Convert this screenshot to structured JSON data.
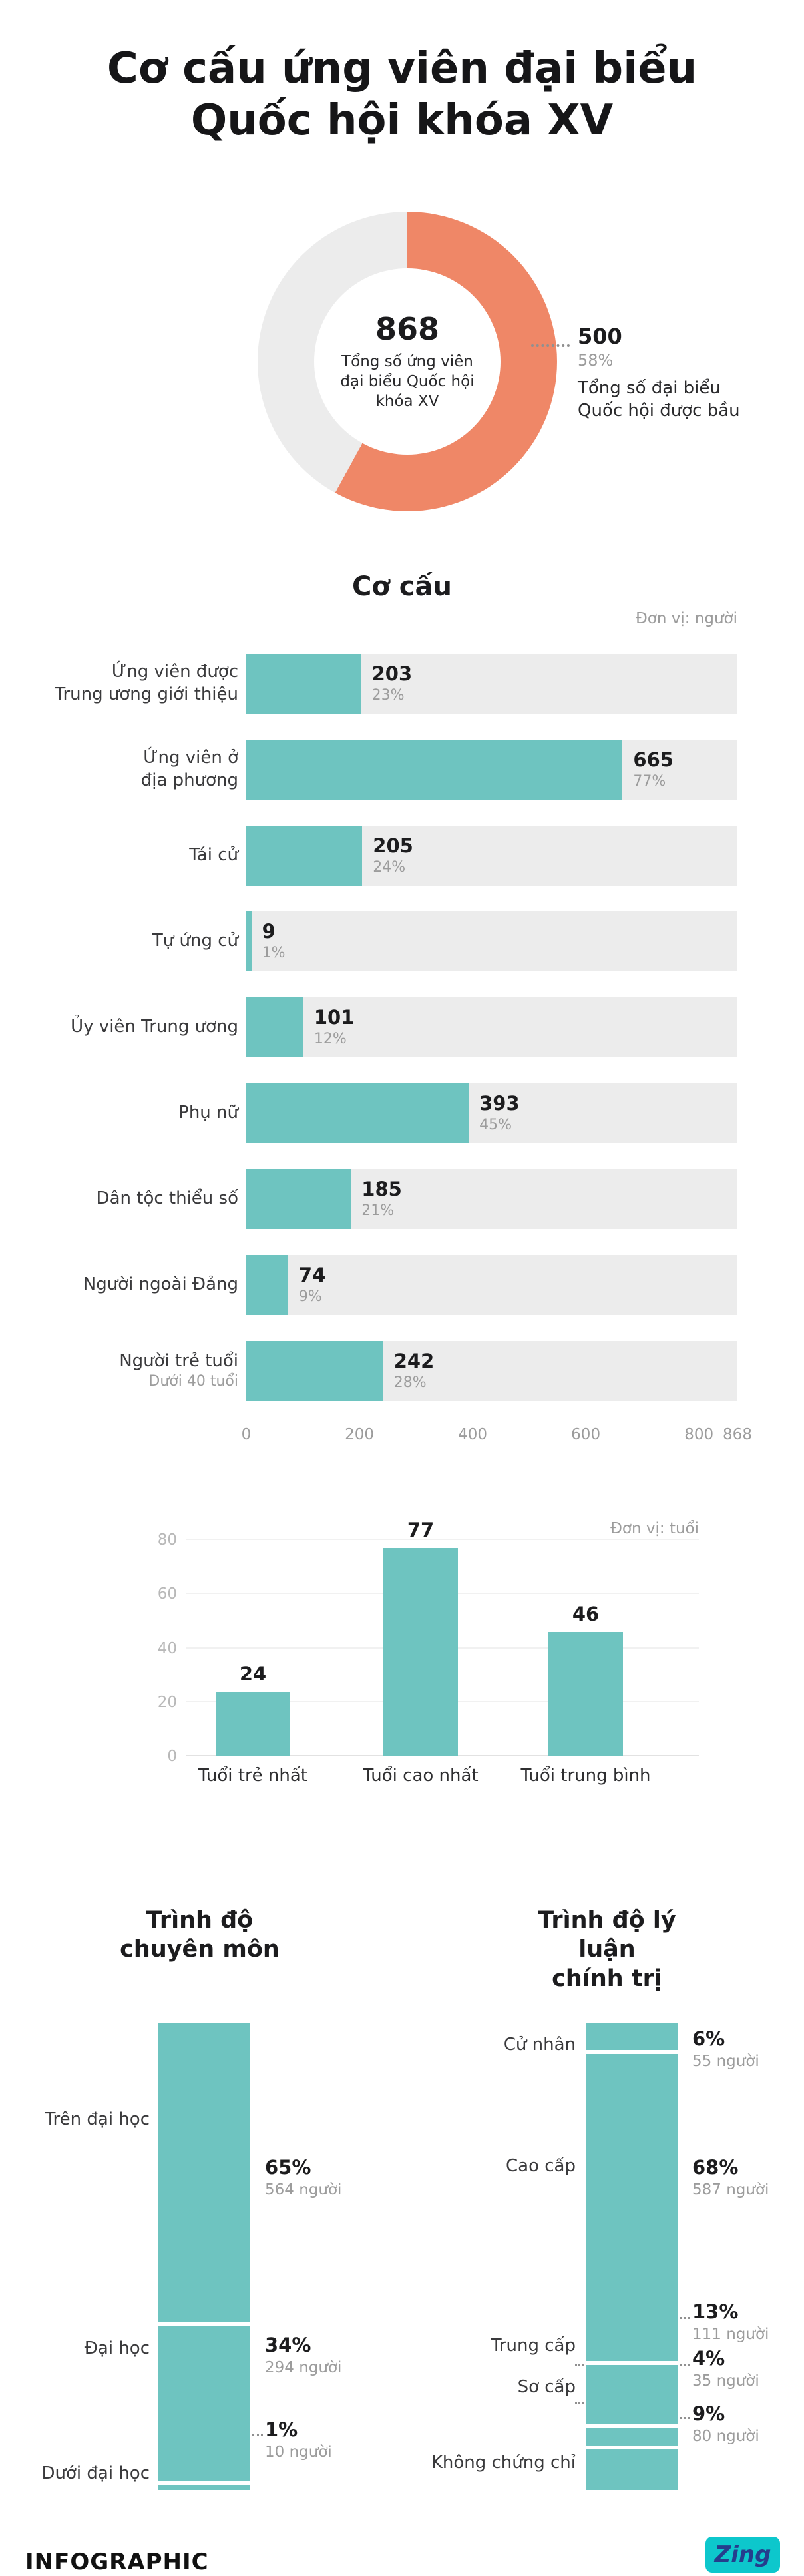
{
  "page_title": "Cơ cấu ứng viên đại biểu\nQuốc hội khóa XV",
  "colors": {
    "teal": "#6ec4c0",
    "orange": "#ef8767",
    "track_gray": "#ececec",
    "text_dark": "#1c1c1e",
    "text_gray": "#9c9c9c"
  },
  "chart_data": [
    {
      "type": "pie",
      "subtype": "donut",
      "center_value": "868",
      "center_label": "Tổng số ứng viên\nđại biểu Quốc hội\nkhóa XV",
      "slices": [
        {
          "label": "Tổng số đại biểu\nQuốc hội được bầu",
          "value": "500",
          "percent": 58,
          "percent_label": "58%",
          "color": "#ef8767"
        },
        {
          "percent": 42,
          "color": "#ececec"
        }
      ]
    },
    {
      "type": "bar",
      "orientation": "horizontal",
      "title": "Cơ cấu",
      "unit": "Đơn vị: người",
      "xlim": [
        0,
        868
      ],
      "x_ticks": [
        0,
        200,
        400,
        600,
        800,
        868
      ],
      "categories": [
        "Ứng viên được\nTrung ương giới thiệu",
        "Ứng viên ở\nđịa phương",
        "Tái cử",
        "Tự ứng cử",
        "Ủy viên Trung ương",
        "Phụ nữ",
        "Dân tộc thiểu số",
        "Người ngoài Đảng",
        "Người trẻ tuổi"
      ],
      "sublabels": [
        "",
        "",
        "",
        "",
        "",
        "",
        "",
        "",
        "Dưới 40 tuổi"
      ],
      "values": [
        203,
        665,
        205,
        9,
        101,
        393,
        185,
        74,
        242
      ],
      "percents": [
        "23%",
        "77%",
        "24%",
        "1%",
        "12%",
        "45%",
        "21%",
        "9%",
        "28%"
      ]
    },
    {
      "type": "bar",
      "orientation": "vertical",
      "unit": "Đơn vị: tuổi",
      "ylim": [
        0,
        80
      ],
      "y_ticks": [
        0,
        20,
        40,
        60,
        80
      ],
      "categories": [
        "Tuổi trẻ nhất",
        "Tuổi cao nhất",
        "Tuổi trung bình"
      ],
      "values": [
        24,
        77,
        46
      ]
    },
    {
      "type": "bar",
      "subtype": "stacked-column",
      "title": "Trình độ\nchuyên môn",
      "segments": [
        {
          "label": "Trên đại học",
          "value": 65,
          "percent": "65%",
          "count": "564 người"
        },
        {
          "label": "Đại học",
          "value": 34,
          "percent": "34%",
          "count": "294 người"
        },
        {
          "label": "Dưới đại học",
          "value": 1,
          "percent": "1%",
          "count": "10 người"
        }
      ]
    },
    {
      "type": "bar",
      "subtype": "stacked-column",
      "title": "Trình độ lý luận\nchính trị",
      "segments": [
        {
          "label": "Cử nhân",
          "value": 6,
          "percent": "6%",
          "count": "55 người"
        },
        {
          "label": "Cao cấp",
          "value": 68,
          "percent": "68%",
          "count": "587 người"
        },
        {
          "label": "Trung cấp",
          "value": 13,
          "percent": "13%",
          "count": "111 người"
        },
        {
          "label": "Sơ cấp",
          "value": 4,
          "percent": "4%",
          "count": "35 người"
        },
        {
          "label": "Không chứng chỉ",
          "value": 9,
          "percent": "9%",
          "count": "80 người"
        }
      ]
    }
  ],
  "footer": {
    "brand": "INFOGRAPHIC",
    "logo_text": "Zing"
  }
}
